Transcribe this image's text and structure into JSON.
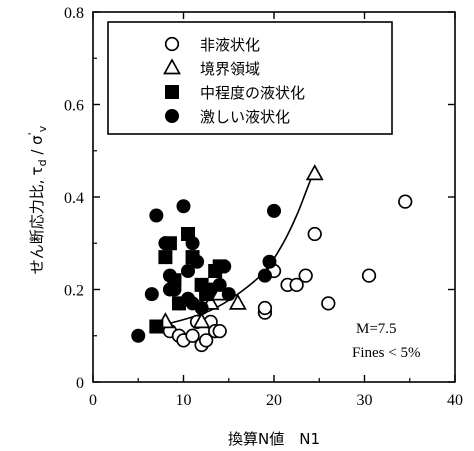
{
  "chart_data": {
    "type": "scatter",
    "xlabel": "換算N値　N1",
    "ylabel": "せん断応力比, τ_d / σ'_v",
    "ylabel_parts": {
      "main": "せん断応力比,",
      "tau": "τ",
      "sub_d": "d",
      "slash": " / ",
      "sigma": "σ",
      "prime": "'",
      "sub_v": "v"
    },
    "xlim": [
      0,
      40
    ],
    "ylim": [
      0,
      0.8
    ],
    "x_ticks": [
      0,
      10,
      20,
      30,
      40
    ],
    "y_ticks": [
      0,
      0.2,
      0.4,
      0.6,
      0.8
    ],
    "x_tick_labels": [
      "0",
      "10",
      "20",
      "30",
      "40"
    ],
    "y_tick_labels": [
      "0",
      "0.2",
      "0.4",
      "0.6",
      "0.8"
    ],
    "grid": false,
    "legend_position": "top-left",
    "annotations": [
      "M=7.5",
      "Fines < 5%"
    ],
    "series": [
      {
        "name": "非液状化",
        "marker": "open-circle",
        "points": [
          [
            8.5,
            0.11
          ],
          [
            9.5,
            0.1
          ],
          [
            10.0,
            0.09
          ],
          [
            11.0,
            0.1
          ],
          [
            11.5,
            0.13
          ],
          [
            12.0,
            0.08
          ],
          [
            12.5,
            0.09
          ],
          [
            13.0,
            0.13
          ],
          [
            13.5,
            0.11
          ],
          [
            14.0,
            0.11
          ],
          [
            19.0,
            0.15
          ],
          [
            19.0,
            0.16
          ],
          [
            20.0,
            0.24
          ],
          [
            21.5,
            0.21
          ],
          [
            22.5,
            0.21
          ],
          [
            23.5,
            0.23
          ],
          [
            24.5,
            0.32
          ],
          [
            26.0,
            0.17
          ],
          [
            30.5,
            0.23
          ],
          [
            34.5,
            0.39
          ]
        ]
      },
      {
        "name": "境界領域",
        "marker": "open-triangle",
        "points": [
          [
            8.0,
            0.13
          ],
          [
            12.0,
            0.13
          ],
          [
            13.0,
            0.17
          ],
          [
            14.0,
            0.19
          ],
          [
            16.0,
            0.17
          ],
          [
            24.5,
            0.45
          ]
        ]
      },
      {
        "name": "中程度の液状化",
        "marker": "filled-square",
        "points": [
          [
            7.0,
            0.12
          ],
          [
            8.0,
            0.27
          ],
          [
            8.5,
            0.3
          ],
          [
            9.0,
            0.22
          ],
          [
            9.5,
            0.17
          ],
          [
            10.5,
            0.32
          ],
          [
            11.0,
            0.27
          ],
          [
            12.0,
            0.21
          ],
          [
            12.5,
            0.19
          ],
          [
            13.5,
            0.24
          ],
          [
            14.0,
            0.25
          ]
        ]
      },
      {
        "name": "激しい液状化",
        "marker": "filled-circle",
        "points": [
          [
            5.0,
            0.1
          ],
          [
            6.5,
            0.19
          ],
          [
            7.0,
            0.36
          ],
          [
            8.0,
            0.3
          ],
          [
            8.5,
            0.23
          ],
          [
            8.5,
            0.2
          ],
          [
            9.0,
            0.2
          ],
          [
            9.5,
            0.17
          ],
          [
            10.0,
            0.38
          ],
          [
            10.5,
            0.24
          ],
          [
            10.5,
            0.18
          ],
          [
            11.0,
            0.3
          ],
          [
            11.0,
            0.17
          ],
          [
            11.5,
            0.26
          ],
          [
            12.0,
            0.16
          ],
          [
            12.5,
            0.19
          ],
          [
            13.0,
            0.2
          ],
          [
            14.0,
            0.21
          ],
          [
            14.5,
            0.25
          ],
          [
            15.0,
            0.19
          ],
          [
            19.0,
            0.23
          ],
          [
            19.5,
            0.26
          ],
          [
            20.0,
            0.37
          ]
        ]
      }
    ],
    "boundary_curve": [
      [
        7.0,
        0.12
      ],
      [
        10.0,
        0.135
      ],
      [
        13.0,
        0.155
      ],
      [
        16.0,
        0.19
      ],
      [
        19.0,
        0.24
      ],
      [
        21.0,
        0.3
      ],
      [
        22.5,
        0.36
      ],
      [
        23.5,
        0.41
      ],
      [
        24.5,
        0.46
      ]
    ]
  }
}
